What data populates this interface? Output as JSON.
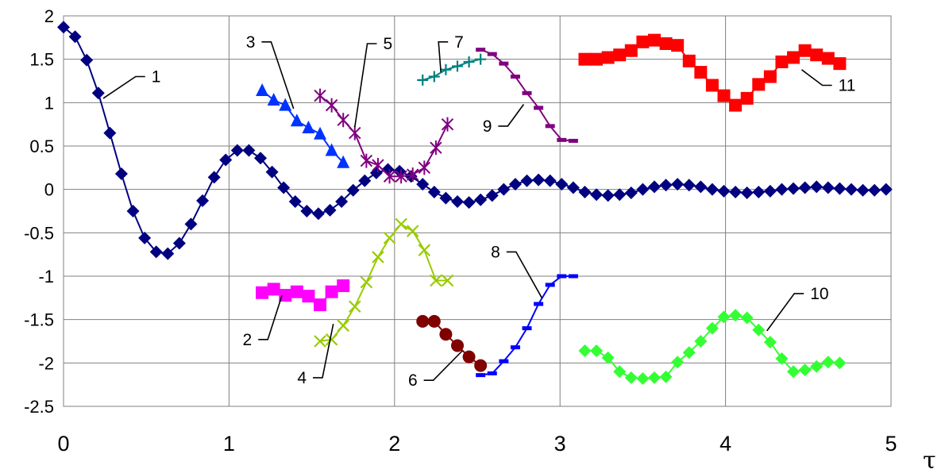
{
  "chart_data": {
    "type": "line",
    "title": "",
    "xlabel": "τ",
    "ylabel": "",
    "xlim": [
      0,
      5
    ],
    "ylim": [
      -2.5,
      2
    ],
    "grid": true,
    "legend": "none",
    "x_ticks": [
      "0",
      "1",
      "2",
      "3",
      "4",
      "5"
    ],
    "y_ticks": [
      "2",
      "1.5",
      "1",
      "0.5",
      "0",
      "-0.5",
      "-1",
      "-1.5",
      "-2",
      "-2.5"
    ],
    "series": [
      {
        "name": "1",
        "color": "#000080",
        "marker": "diamond",
        "x": [
          0,
          0.07,
          0.14,
          0.21,
          0.28,
          0.35,
          0.42,
          0.49,
          0.56,
          0.63,
          0.7,
          0.77,
          0.84,
          0.91,
          0.98,
          1.05,
          1.12,
          1.19,
          1.26,
          1.33,
          1.4,
          1.47,
          1.54,
          1.61,
          1.68,
          1.75,
          1.82,
          1.89,
          1.96,
          2.03,
          2.1,
          2.17,
          2.24,
          2.31,
          2.38,
          2.45,
          2.52,
          2.59,
          2.66,
          2.73,
          2.8,
          2.87,
          2.94,
          3.01,
          3.08,
          3.15,
          3.22,
          3.29,
          3.36,
          3.43,
          3.5,
          3.57,
          3.64,
          3.71,
          3.78,
          3.85,
          3.92,
          3.99,
          4.06,
          4.13,
          4.2,
          4.27,
          4.34,
          4.41,
          4.48,
          4.55,
          4.62,
          4.69,
          4.76,
          4.83,
          4.9,
          4.97
        ],
        "y": [
          1.87,
          1.76,
          1.49,
          1.11,
          0.65,
          0.18,
          -0.25,
          -0.56,
          -0.72,
          -0.74,
          -0.62,
          -0.4,
          -0.13,
          0.14,
          0.34,
          0.45,
          0.45,
          0.36,
          0.2,
          0.02,
          -0.14,
          -0.25,
          -0.28,
          -0.24,
          -0.14,
          -0.01,
          0.1,
          0.19,
          0.23,
          0.21,
          0.15,
          0.06,
          -0.03,
          -0.1,
          -0.14,
          -0.15,
          -0.12,
          -0.07,
          0.0,
          0.06,
          0.1,
          0.11,
          0.1,
          0.06,
          0.02,
          -0.03,
          -0.06,
          -0.07,
          -0.06,
          -0.04,
          0.0,
          0.03,
          0.05,
          0.06,
          0.05,
          0.03,
          0.0,
          -0.02,
          -0.03,
          -0.04,
          -0.03,
          -0.02,
          0.0,
          0.01,
          0.02,
          0.03,
          0.02,
          0.01,
          0.0,
          -0.01,
          -0.01,
          0.0
        ]
      },
      {
        "name": "2",
        "color": "#FF00FF",
        "marker": "square",
        "x": [
          1.2,
          1.27,
          1.34,
          1.41,
          1.48,
          1.55,
          1.62,
          1.69
        ],
        "y": [
          -1.19,
          -1.15,
          -1.22,
          -1.18,
          -1.23,
          -1.33,
          -1.18,
          -1.11
        ]
      },
      {
        "name": "3",
        "color": "#0033FF",
        "marker": "triangle",
        "x": [
          1.2,
          1.27,
          1.34,
          1.41,
          1.48,
          1.55,
          1.62,
          1.69
        ],
        "y": [
          1.14,
          1.03,
          0.97,
          0.79,
          0.71,
          0.64,
          0.45,
          0.31
        ]
      },
      {
        "name": "4",
        "color": "#99CC00",
        "marker": "x",
        "x": [
          1.55,
          1.62,
          1.69,
          1.76,
          1.83,
          1.9,
          1.97,
          2.04,
          2.11,
          2.18,
          2.25,
          2.32
        ],
        "y": [
          -1.75,
          -1.73,
          -1.57,
          -1.35,
          -1.07,
          -0.78,
          -0.56,
          -0.4,
          -0.48,
          -0.7,
          -1.05,
          -1.05
        ]
      },
      {
        "name": "5",
        "color": "#800080",
        "marker": "star",
        "x": [
          1.55,
          1.62,
          1.69,
          1.76,
          1.83,
          1.9,
          1.97,
          2.04,
          2.11,
          2.18,
          2.25,
          2.32
        ],
        "y": [
          1.08,
          0.97,
          0.8,
          0.65,
          0.33,
          0.28,
          0.15,
          0.15,
          0.17,
          0.25,
          0.48,
          0.75
        ]
      },
      {
        "name": "6",
        "color": "#800000",
        "marker": "circle",
        "x": [
          2.17,
          2.24,
          2.31,
          2.38,
          2.45,
          2.52
        ],
        "y": [
          -1.52,
          -1.52,
          -1.67,
          -1.8,
          -1.93,
          -2.03
        ]
      },
      {
        "name": "7",
        "color": "#008080",
        "marker": "plus",
        "x": [
          2.17,
          2.24,
          2.31,
          2.38,
          2.45,
          2.52
        ],
        "y": [
          1.26,
          1.3,
          1.38,
          1.42,
          1.47,
          1.5
        ]
      },
      {
        "name": "8",
        "color": "#0000FF",
        "marker": "dash",
        "x": [
          2.52,
          2.59,
          2.66,
          2.73,
          2.8,
          2.87,
          2.94,
          3.01,
          3.08
        ],
        "y": [
          -2.14,
          -2.12,
          -1.98,
          -1.82,
          -1.6,
          -1.32,
          -1.1,
          -1.0,
          -1.0
        ]
      },
      {
        "name": "9",
        "color": "#800080",
        "marker": "dash",
        "x": [
          2.52,
          2.59,
          2.66,
          2.73,
          2.8,
          2.87,
          2.94,
          3.01,
          3.08
        ],
        "y": [
          1.61,
          1.56,
          1.45,
          1.3,
          1.11,
          0.94,
          0.73,
          0.57,
          0.56
        ]
      },
      {
        "name": "10",
        "color": "#33FF33",
        "marker": "diamond",
        "x": [
          3.15,
          3.22,
          3.29,
          3.36,
          3.43,
          3.5,
          3.57,
          3.64,
          3.71,
          3.78,
          3.85,
          3.92,
          3.99,
          4.06,
          4.13,
          4.2,
          4.27,
          4.34,
          4.41,
          4.48,
          4.55,
          4.62,
          4.69
        ],
        "y": [
          -1.86,
          -1.86,
          -1.94,
          -2.1,
          -2.17,
          -2.18,
          -2.17,
          -2.16,
          -1.99,
          -1.88,
          -1.75,
          -1.6,
          -1.47,
          -1.45,
          -1.48,
          -1.62,
          -1.76,
          -1.95,
          -2.1,
          -2.08,
          -2.04,
          -1.99,
          -2.0
        ]
      },
      {
        "name": "11",
        "color": "#FF0000",
        "marker": "square",
        "x": [
          3.15,
          3.22,
          3.29,
          3.36,
          3.43,
          3.5,
          3.57,
          3.64,
          3.71,
          3.78,
          3.85,
          3.92,
          3.99,
          4.06,
          4.13,
          4.2,
          4.27,
          4.34,
          4.41,
          4.48,
          4.55,
          4.62,
          4.69
        ],
        "y": [
          1.5,
          1.5,
          1.52,
          1.55,
          1.6,
          1.7,
          1.72,
          1.68,
          1.66,
          1.48,
          1.35,
          1.2,
          1.08,
          0.97,
          1.05,
          1.21,
          1.3,
          1.47,
          1.52,
          1.6,
          1.55,
          1.51,
          1.45
        ]
      }
    ],
    "annotations": [
      {
        "text": "1",
        "px": 0.24,
        "py": 1.05
      },
      {
        "text": "2",
        "px": 1.32,
        "py": -1.22
      },
      {
        "text": "3",
        "px": 1.39,
        "py": 0.93
      },
      {
        "text": "4",
        "px": 1.63,
        "py": -1.55
      },
      {
        "text": "5",
        "px": 1.76,
        "py": 0.72
      },
      {
        "text": "6",
        "px": 2.41,
        "py": -1.86
      },
      {
        "text": "7",
        "px": 2.28,
        "py": 1.35
      },
      {
        "text": "8",
        "px": 2.89,
        "py": -1.25
      },
      {
        "text": "9",
        "px": 2.78,
        "py": 0.98
      },
      {
        "text": "10",
        "px": 4.25,
        "py": -1.63
      },
      {
        "text": "11",
        "px": 4.46,
        "py": 1.38
      }
    ]
  }
}
